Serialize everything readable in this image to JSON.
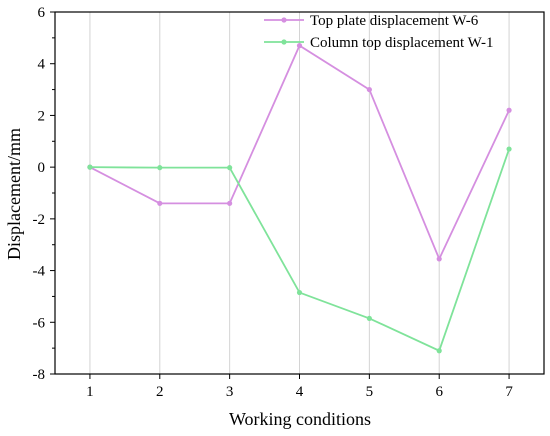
{
  "chart_data": {
    "type": "line",
    "title": "",
    "xlabel": "Working conditions",
    "ylabel": "Displacement/mm",
    "x": [
      1,
      2,
      3,
      4,
      5,
      6,
      7
    ],
    "xlim": [
      0.5,
      7.5
    ],
    "ylim": [
      -8,
      6
    ],
    "xticks": [
      1,
      2,
      3,
      4,
      5,
      6,
      7
    ],
    "yticks": [
      -8,
      -6,
      -4,
      -2,
      0,
      2,
      4,
      6
    ],
    "grid": "vertical",
    "legend_position": "top-right",
    "series": [
      {
        "name": "Top plate displacement W-6",
        "color": "#d58fe0",
        "values": [
          0,
          -1.4,
          -1.4,
          4.7,
          3.0,
          -3.55,
          2.2
        ]
      },
      {
        "name": "Column top displacement W-1",
        "color": "#7fe39a",
        "values": [
          0,
          -0.02,
          -0.02,
          -4.85,
          -5.85,
          -7.1,
          0.7
        ]
      }
    ]
  }
}
